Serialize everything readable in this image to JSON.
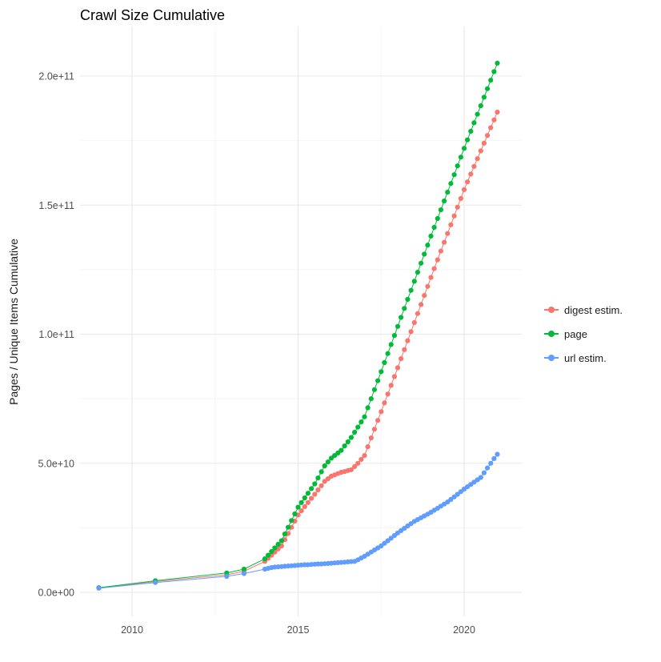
{
  "chart_data": {
    "type": "line",
    "markers": true,
    "title": "Crawl Size Cumulative",
    "xlabel": "",
    "ylabel": "Pages / Unique Items Cumulative",
    "value_unit": "1e9",
    "xlim": [
      2008.4,
      2021.75
    ],
    "ylim": [
      -9,
      219
    ],
    "grid": true,
    "legend_position": "right",
    "x_ticks": [
      {
        "value": 2010,
        "label": "2010"
      },
      {
        "value": 2015,
        "label": "2015"
      },
      {
        "value": 2020,
        "label": "2020"
      }
    ],
    "y_ticks": [
      {
        "value": 0,
        "label": "0.0e+00"
      },
      {
        "value": 50,
        "label": "5.0e+10"
      },
      {
        "value": 100,
        "label": "1.0e+11"
      },
      {
        "value": 150,
        "label": "1.5e+11"
      },
      {
        "value": 200,
        "label": "2.0e+11"
      }
    ],
    "x_minor": [
      2012.5,
      2017.5
    ],
    "y_minor": [
      25,
      75,
      125,
      175
    ],
    "colors": {
      "grid_major": "#e8e8e8",
      "grid_minor": "#f4f4f4",
      "axis_text": "#4d4d4d",
      "title_text": "#000000"
    },
    "series": [
      {
        "id": "digest-estim",
        "name": "digest estim.",
        "color": "#F8766D",
        "points": [
          [
            2009.0,
            1.7
          ],
          [
            2010.7,
            4.2
          ],
          [
            2012.85,
            6.8
          ],
          [
            2013.37,
            8.2
          ],
          [
            2014,
            12
          ],
          [
            2014.1,
            13.2
          ],
          [
            2014.2,
            14.4
          ],
          [
            2014.3,
            15.6
          ],
          [
            2014.4,
            16.8
          ],
          [
            2014.5,
            18
          ],
          [
            2014.6,
            20.4
          ],
          [
            2014.7,
            22.8
          ],
          [
            2014.8,
            25.2
          ],
          [
            2014.9,
            27.6
          ],
          [
            2015,
            30
          ],
          [
            2015.1,
            31.6
          ],
          [
            2015.2,
            33.2
          ],
          [
            2015.3,
            34.8
          ],
          [
            2015.4,
            36.4
          ],
          [
            2015.5,
            38
          ],
          [
            2015.6,
            39.7
          ],
          [
            2015.7,
            41.3
          ],
          [
            2015.8,
            43
          ],
          [
            2015.9,
            44
          ],
          [
            2016,
            45
          ],
          [
            2016.1,
            45.5
          ],
          [
            2016.2,
            46
          ],
          [
            2016.3,
            46.5
          ],
          [
            2016.4,
            46.8
          ],
          [
            2016.5,
            47.2
          ],
          [
            2016.6,
            47.5
          ],
          [
            2016.7,
            48.7
          ],
          [
            2016.8,
            50
          ],
          [
            2016.9,
            51.5
          ],
          [
            2017,
            53
          ],
          [
            2017.1,
            56.4
          ],
          [
            2017.2,
            59.8
          ],
          [
            2017.3,
            63.2
          ],
          [
            2017.4,
            66.6
          ],
          [
            2017.5,
            70
          ],
          [
            2017.6,
            73.4
          ],
          [
            2017.7,
            76.8
          ],
          [
            2017.8,
            80.2
          ],
          [
            2017.9,
            83.6
          ],
          [
            2018,
            87
          ],
          [
            2018.1,
            90.5
          ],
          [
            2018.2,
            94
          ],
          [
            2018.3,
            97.5
          ],
          [
            2018.4,
            101
          ],
          [
            2018.5,
            104.5
          ],
          [
            2018.6,
            108
          ],
          [
            2018.7,
            111.5
          ],
          [
            2018.8,
            115
          ],
          [
            2018.9,
            118.5
          ],
          [
            2019,
            122
          ],
          [
            2019.1,
            125.4
          ],
          [
            2019.2,
            128.8
          ],
          [
            2019.3,
            132.2
          ],
          [
            2019.4,
            135.6
          ],
          [
            2019.5,
            139
          ],
          [
            2019.6,
            142.4
          ],
          [
            2019.7,
            145.8
          ],
          [
            2019.8,
            149.2
          ],
          [
            2019.9,
            152.6
          ],
          [
            2020,
            156
          ],
          [
            2020.1,
            159
          ],
          [
            2020.2,
            162
          ],
          [
            2020.3,
            165
          ],
          [
            2020.4,
            168
          ],
          [
            2020.5,
            171
          ],
          [
            2020.6,
            174
          ],
          [
            2020.7,
            177
          ],
          [
            2020.8,
            180
          ],
          [
            2020.9,
            183
          ],
          [
            2021,
            186
          ]
        ]
      },
      {
        "id": "page",
        "name": "page",
        "color": "#00BA38",
        "points": [
          [
            2009.0,
            1.8
          ],
          [
            2010.7,
            4.5
          ],
          [
            2012.85,
            7.5
          ],
          [
            2013.37,
            9
          ],
          [
            2014,
            13
          ],
          [
            2014.1,
            14.4
          ],
          [
            2014.2,
            15.8
          ],
          [
            2014.3,
            17.2
          ],
          [
            2014.4,
            18.6
          ],
          [
            2014.5,
            20
          ],
          [
            2014.6,
            22.6
          ],
          [
            2014.7,
            25.2
          ],
          [
            2014.8,
            27.8
          ],
          [
            2014.9,
            30.4
          ],
          [
            2015,
            33
          ],
          [
            2015.1,
            34.8
          ],
          [
            2015.2,
            36.6
          ],
          [
            2015.3,
            38.4
          ],
          [
            2015.4,
            40.2
          ],
          [
            2015.5,
            42
          ],
          [
            2015.6,
            44.3
          ],
          [
            2015.7,
            46.7
          ],
          [
            2015.8,
            49
          ],
          [
            2015.9,
            50.5
          ],
          [
            2016,
            52
          ],
          [
            2016.1,
            53
          ],
          [
            2016.2,
            54
          ],
          [
            2016.3,
            55
          ],
          [
            2016.4,
            56.7
          ],
          [
            2016.5,
            58.3
          ],
          [
            2016.6,
            60
          ],
          [
            2016.7,
            62
          ],
          [
            2016.8,
            64
          ],
          [
            2016.9,
            66
          ],
          [
            2017,
            68
          ],
          [
            2017.1,
            71.5
          ],
          [
            2017.2,
            75
          ],
          [
            2017.3,
            78.5
          ],
          [
            2017.4,
            82
          ],
          [
            2017.5,
            85.5
          ],
          [
            2017.6,
            89
          ],
          [
            2017.7,
            92.5
          ],
          [
            2017.8,
            96
          ],
          [
            2017.9,
            99.5
          ],
          [
            2018,
            103
          ],
          [
            2018.1,
            106.5
          ],
          [
            2018.2,
            110
          ],
          [
            2018.3,
            113.5
          ],
          [
            2018.4,
            117
          ],
          [
            2018.5,
            120.5
          ],
          [
            2018.6,
            124
          ],
          [
            2018.7,
            127.5
          ],
          [
            2018.8,
            131
          ],
          [
            2018.9,
            134.5
          ],
          [
            2019,
            138
          ],
          [
            2019.1,
            141.4
          ],
          [
            2019.2,
            144.8
          ],
          [
            2019.3,
            148.2
          ],
          [
            2019.4,
            151.6
          ],
          [
            2019.5,
            155
          ],
          [
            2019.6,
            158.4
          ],
          [
            2019.7,
            161.8
          ],
          [
            2019.8,
            165.2
          ],
          [
            2019.9,
            168.6
          ],
          [
            2020,
            172
          ],
          [
            2020.1,
            175.3
          ],
          [
            2020.2,
            178.6
          ],
          [
            2020.3,
            181.9
          ],
          [
            2020.4,
            185.2
          ],
          [
            2020.5,
            188.5
          ],
          [
            2020.6,
            191.8
          ],
          [
            2020.7,
            195.1
          ],
          [
            2020.8,
            198.4
          ],
          [
            2020.9,
            201.7
          ],
          [
            2021,
            205
          ]
        ]
      },
      {
        "id": "url-estim",
        "name": "url estim.",
        "color": "#619CFF",
        "points": [
          [
            2009.0,
            1.6
          ],
          [
            2010.7,
            3.8
          ],
          [
            2012.85,
            6.2
          ],
          [
            2013.37,
            7.3
          ],
          [
            2014,
            9
          ],
          [
            2014.1,
            9.3
          ],
          [
            2014.2,
            9.6
          ],
          [
            2014.3,
            9.8
          ],
          [
            2014.4,
            9.9
          ],
          [
            2014.5,
            10
          ],
          [
            2014.6,
            10.1
          ],
          [
            2014.7,
            10.2
          ],
          [
            2014.8,
            10.3
          ],
          [
            2014.9,
            10.4
          ],
          [
            2015,
            10.5
          ],
          [
            2015.1,
            10.6
          ],
          [
            2015.2,
            10.7
          ],
          [
            2015.3,
            10.7
          ],
          [
            2015.4,
            10.8
          ],
          [
            2015.5,
            10.9
          ],
          [
            2015.6,
            11
          ],
          [
            2015.7,
            11
          ],
          [
            2015.8,
            11.1
          ],
          [
            2015.9,
            11.2
          ],
          [
            2016,
            11.3
          ],
          [
            2016.1,
            11.4
          ],
          [
            2016.2,
            11.5
          ],
          [
            2016.3,
            11.6
          ],
          [
            2016.4,
            11.7
          ],
          [
            2016.5,
            11.8
          ],
          [
            2016.6,
            11.9
          ],
          [
            2016.7,
            12
          ],
          [
            2016.8,
            12.6
          ],
          [
            2016.9,
            13.3
          ],
          [
            2017,
            14
          ],
          [
            2017.1,
            14.8
          ],
          [
            2017.2,
            15.6
          ],
          [
            2017.3,
            16.4
          ],
          [
            2017.4,
            17.2
          ],
          [
            2017.5,
            18
          ],
          [
            2017.6,
            19
          ],
          [
            2017.7,
            20
          ],
          [
            2017.8,
            21
          ],
          [
            2017.9,
            22
          ],
          [
            2018,
            23
          ],
          [
            2018.1,
            23.9
          ],
          [
            2018.2,
            24.8
          ],
          [
            2018.3,
            25.7
          ],
          [
            2018.4,
            26.6
          ],
          [
            2018.5,
            27.5
          ],
          [
            2018.6,
            28.2
          ],
          [
            2018.7,
            28.9
          ],
          [
            2018.8,
            29.6
          ],
          [
            2018.9,
            30.3
          ],
          [
            2019,
            31
          ],
          [
            2019.1,
            31.8
          ],
          [
            2019.2,
            32.6
          ],
          [
            2019.3,
            33.4
          ],
          [
            2019.4,
            34.2
          ],
          [
            2019.5,
            35
          ],
          [
            2019.6,
            36
          ],
          [
            2019.7,
            37
          ],
          [
            2019.8,
            38
          ],
          [
            2019.9,
            39
          ],
          [
            2020,
            40
          ],
          [
            2020.1,
            40.9
          ],
          [
            2020.2,
            41.8
          ],
          [
            2020.3,
            42.7
          ],
          [
            2020.4,
            43.6
          ],
          [
            2020.5,
            44.5
          ],
          [
            2020.6,
            46.3
          ],
          [
            2020.7,
            48.2
          ],
          [
            2020.8,
            50
          ],
          [
            2020.9,
            51.8
          ],
          [
            2021,
            53.5
          ]
        ]
      }
    ]
  }
}
